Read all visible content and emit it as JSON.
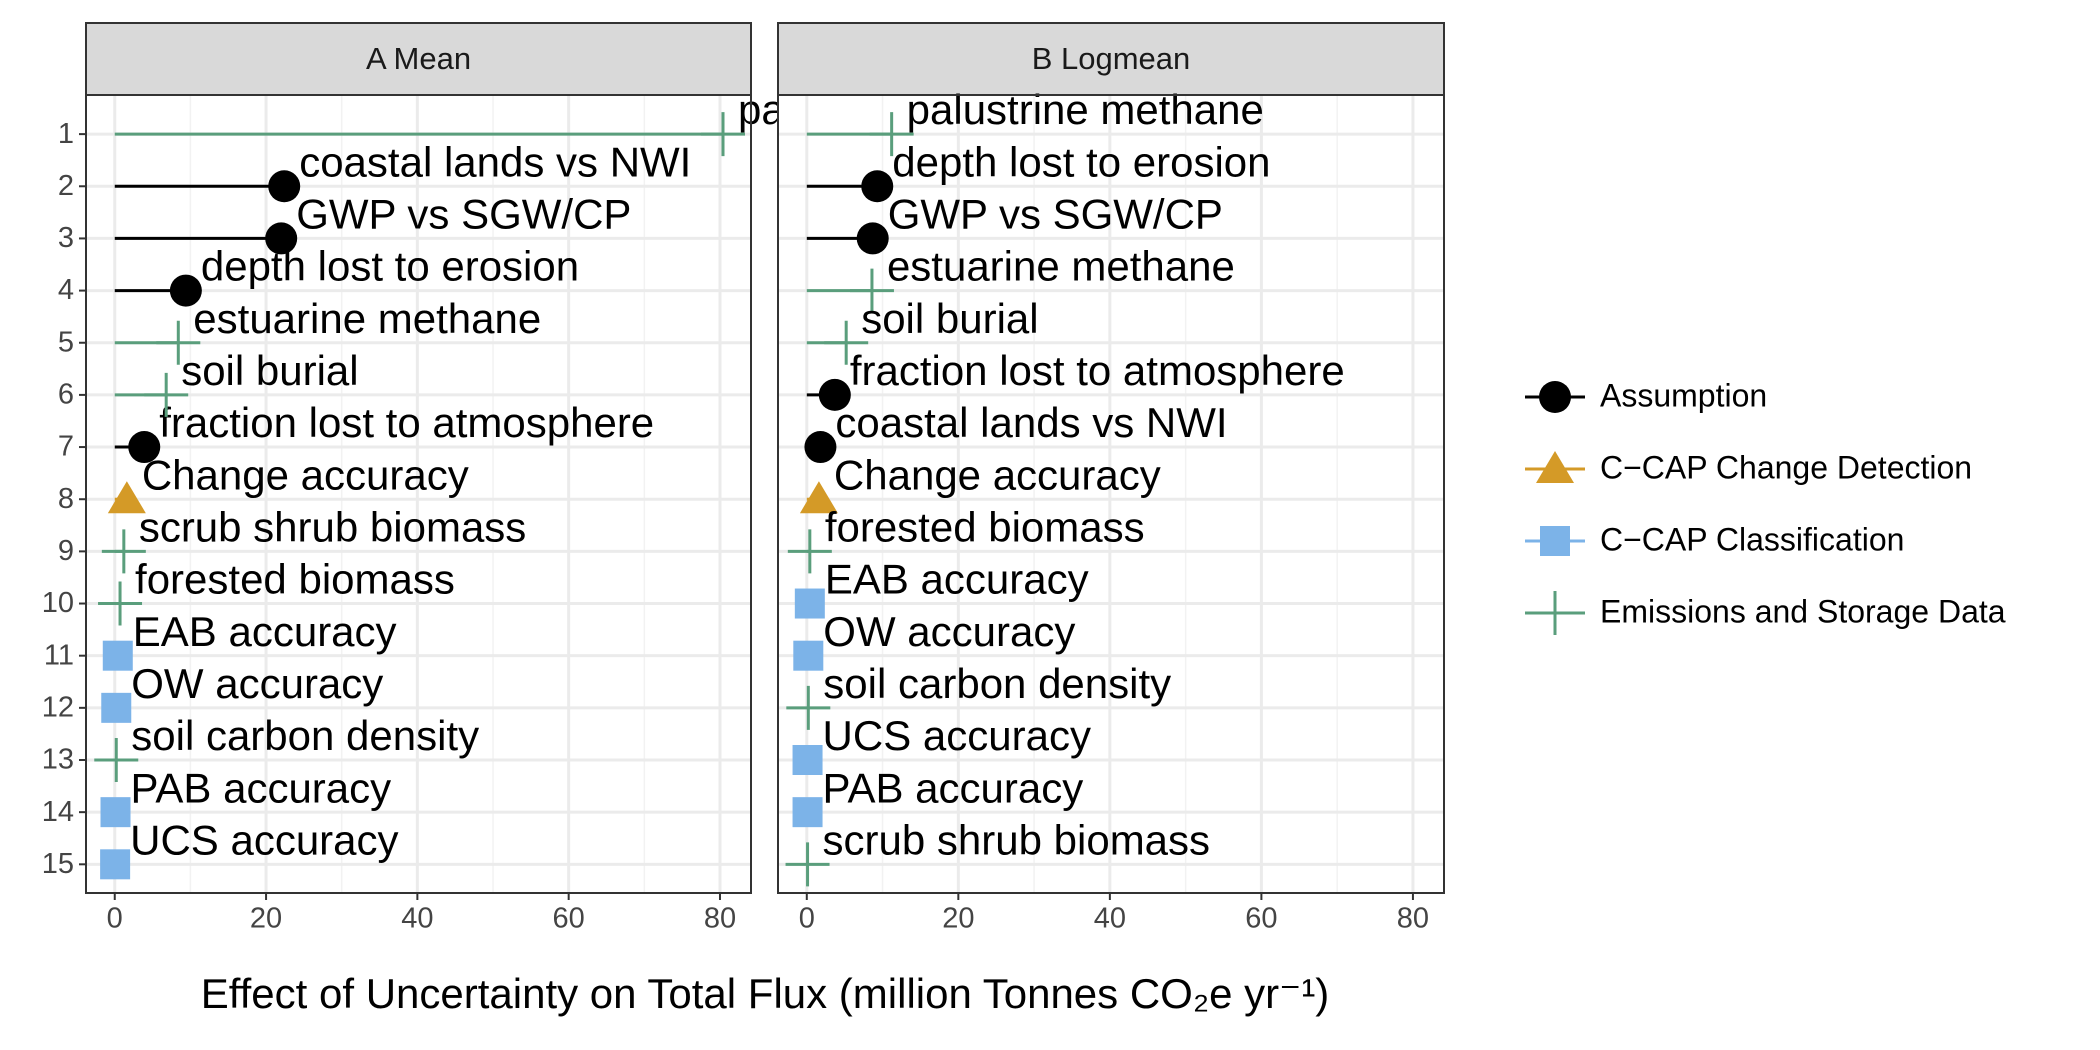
{
  "chart_data": {
    "type": "lollipop",
    "xlabel": "Effect of Uncertainty on Total Flux (million Tonnes CO₂e yr⁻¹)",
    "xlim": [
      -3.8,
      84.1
    ],
    "xticks": [
      0,
      20,
      40,
      60,
      80
    ],
    "ylim": [
      15.55,
      0.25
    ],
    "yticks": [
      1,
      2,
      3,
      4,
      5,
      6,
      7,
      8,
      9,
      10,
      11,
      12,
      13,
      14,
      15
    ],
    "grid": true,
    "legend_position": "right",
    "panels": [
      {
        "title": "A Mean"
      },
      {
        "title": "B Logmean"
      }
    ],
    "series": [
      {
        "name": "Assumption",
        "color": "#000000",
        "marker": "circle",
        "labels": [
          [
            "coastal lands vs NWI",
            "GWP vs SGW/CP",
            "depth lost to erosion",
            "fraction lost to atmosphere"
          ],
          [
            "depth lost to erosion",
            "GWP vs SGW/CP",
            "fraction lost to atmosphere",
            "coastal lands vs NWI"
          ]
        ],
        "y": [
          [
            2,
            3,
            4,
            7
          ],
          [
            2,
            3,
            6,
            7
          ]
        ],
        "values": [
          [
            22.4,
            22.0,
            9.4,
            3.9
          ],
          [
            9.3,
            8.7,
            3.7,
            1.8
          ]
        ]
      },
      {
        "name": "C−CAP Change Detection",
        "color": "#d49a27",
        "marker": "triangle",
        "labels": [
          [
            "Change accuracy"
          ],
          [
            "Change accuracy"
          ]
        ],
        "y": [
          [
            8
          ],
          [
            8
          ]
        ],
        "values": [
          [
            1.6
          ],
          [
            1.6
          ]
        ]
      },
      {
        "name": "C−CAP Classification",
        "color": "#7cb3e8",
        "marker": "square",
        "labels": [
          [
            "EAB accuracy",
            "OW accuracy",
            "PAB accuracy",
            "UCS accuracy"
          ],
          [
            "EAB accuracy",
            "OW accuracy",
            "UCS accuracy",
            "PAB accuracy"
          ]
        ],
        "y": [
          [
            11,
            12,
            14,
            15
          ],
          [
            10,
            11,
            13,
            14
          ]
        ],
        "values": [
          [
            0.4,
            0.2,
            0.1,
            0.05
          ],
          [
            0.4,
            0.2,
            0.1,
            0.1
          ]
        ]
      },
      {
        "name": "Emissions and Storage Data",
        "color": "#5a9e7c",
        "marker": "plus",
        "labels": [
          [
            "palustrine methane",
            "estuarine methane",
            "soil burial",
            "scrub shrub biomass",
            "forested biomass",
            "soil carbon density"
          ],
          [
            "palustrine methane",
            "estuarine methane",
            "soil burial",
            "forested biomass",
            "soil carbon density",
            "scrub shrub biomass"
          ]
        ],
        "y": [
          [
            1,
            5,
            6,
            9,
            10,
            13
          ],
          [
            1,
            4,
            5,
            9,
            12,
            15
          ]
        ],
        "values": [
          [
            80.4,
            8.4,
            6.8,
            1.2,
            0.7,
            0.2
          ],
          [
            11.2,
            8.6,
            5.2,
            0.4,
            0.2,
            0.1
          ]
        ]
      }
    ]
  }
}
